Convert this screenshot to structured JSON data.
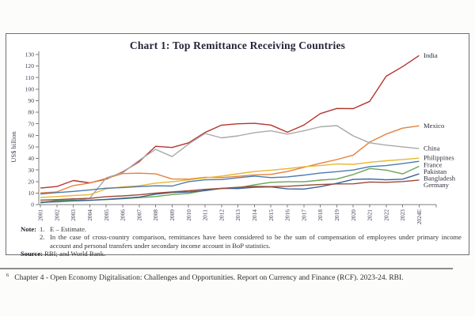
{
  "chart_data": {
    "type": "line",
    "title": "Chart 1: Top Remittance Receiving Countries",
    "xlabel": "",
    "ylabel": "US$ billion",
    "ylim": [
      0,
      130
    ],
    "ytick_step": 10,
    "grid": false,
    "legend_position": "right-end-labels",
    "categories": [
      "2001",
      "2002",
      "2003",
      "2004",
      "2005",
      "2006",
      "2007",
      "2008",
      "2009",
      "2010",
      "2011",
      "2012",
      "2013",
      "2014",
      "2015",
      "2016",
      "2017",
      "2018",
      "2019",
      "2020",
      "2021",
      "2022",
      "2023",
      "2024E"
    ],
    "series": [
      {
        "name": "India",
        "color": "#b5342f",
        "values": [
          14.3,
          15.7,
          20.9,
          18.8,
          22.1,
          28.3,
          37.2,
          50.5,
          49.5,
          53.5,
          62.5,
          68.8,
          70.0,
          70.4,
          68.9,
          62.7,
          68.9,
          78.8,
          83.3,
          83.1,
          89.4,
          111.2,
          119.5,
          129.1
        ]
      },
      {
        "name": "Mexico",
        "color": "#e4813d",
        "values": [
          10.1,
          11.0,
          16.5,
          18.7,
          22.7,
          26.9,
          27.2,
          26.6,
          22.2,
          22.1,
          23.6,
          23.4,
          24.5,
          25.7,
          26.2,
          28.7,
          32.3,
          35.8,
          39.0,
          42.9,
          54.1,
          61.1,
          66.2,
          68.2
        ]
      },
      {
        "name": "China",
        "color": "#a9a9a9",
        "values": [
          1.7,
          2.2,
          3.3,
          5.6,
          23.2,
          27.6,
          38.4,
          47.8,
          41.6,
          52.5,
          61.6,
          57.8,
          59.5,
          62.3,
          63.9,
          61.0,
          63.9,
          67.4,
          68.4,
          59.5,
          53.5,
          51.5,
          50.0,
          48.5
        ]
      },
      {
        "name": "Philippines",
        "color": "#e9b634",
        "values": [
          6.2,
          7.0,
          7.9,
          8.6,
          13.7,
          15.3,
          16.3,
          18.6,
          19.8,
          21.4,
          23.1,
          24.6,
          26.7,
          28.7,
          29.8,
          31.1,
          32.8,
          33.8,
          35.2,
          34.9,
          36.7,
          38.0,
          39.1,
          40.2
        ]
      },
      {
        "name": "France",
        "color": "#4d79ae",
        "values": [
          9.2,
          10.4,
          11.4,
          12.7,
          14.2,
          14.8,
          15.6,
          16.3,
          16.1,
          19.9,
          21.5,
          21.7,
          23.3,
          24.7,
          23.4,
          24.0,
          25.5,
          27.3,
          28.5,
          30.0,
          32.9,
          33.8,
          35.5,
          37.5
        ]
      },
      {
        "name": "Pakistan",
        "color": "#6aa355",
        "values": [
          1.5,
          3.6,
          4.0,
          3.9,
          4.3,
          5.1,
          6.0,
          7.0,
          8.7,
          9.7,
          12.3,
          14.0,
          14.6,
          17.2,
          19.3,
          19.8,
          19.8,
          21.2,
          22.2,
          26.1,
          31.3,
          29.9,
          26.6,
          33.2
        ]
      },
      {
        "name": "Bangladesh",
        "color": "#3a6394",
        "values": [
          2.1,
          2.9,
          3.2,
          3.6,
          4.6,
          5.5,
          6.6,
          9.0,
          10.5,
          10.9,
          12.1,
          14.1,
          13.9,
          15.0,
          15.3,
          13.6,
          13.5,
          15.5,
          18.4,
          21.8,
          22.2,
          21.5,
          22.0,
          26.6
        ]
      },
      {
        "name": "Germany",
        "color": "#9a4a38",
        "values": [
          3.9,
          4.3,
          5.0,
          5.4,
          6.9,
          7.5,
          8.5,
          9.9,
          11.0,
          12.0,
          13.2,
          14.0,
          15.0,
          15.8,
          15.6,
          15.9,
          16.7,
          17.4,
          17.9,
          18.0,
          19.6,
          19.3,
          20.0,
          21.3
        ]
      }
    ]
  },
  "notes": {
    "note_label": "Note:",
    "items": [
      {
        "num": "1.",
        "text": "E – Estimate."
      },
      {
        "num": "2.",
        "text": "In the case of cross-country comparison, remittances have been considered to be the sum of compensation of employees under primary income account and personal transfers under secondary income account in BoP statistics."
      }
    ],
    "source_label": "Source:",
    "source_text": "RBI; and World Bank."
  },
  "footer": {
    "sup": "6",
    "text": "Chapter 4 - Open Economy Digitalisation: Challenges and Opportunities. Report on Currency and Finance (RCF). 2023-24. RBI."
  }
}
